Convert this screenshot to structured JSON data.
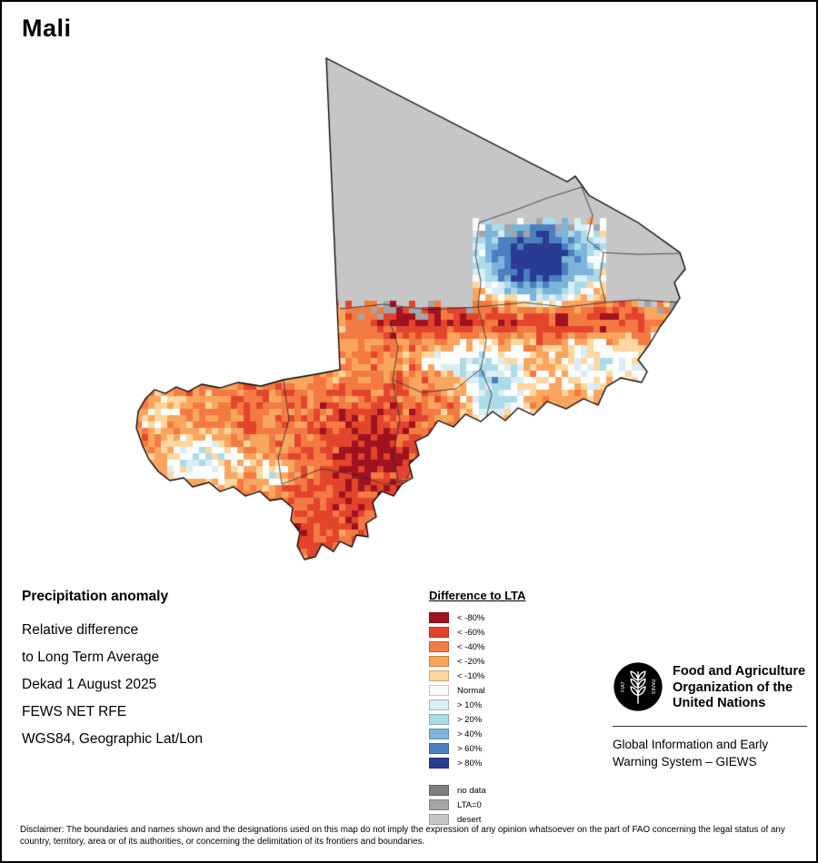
{
  "page": {
    "title": "Mali"
  },
  "info": {
    "heading": "Precipitation anomaly",
    "lines": [
      "Relative difference",
      "to Long Term Average",
      "Dekad 1 August 2025",
      "FEWS NET RFE",
      "WGS84, Geographic Lat/Lon"
    ]
  },
  "legend": {
    "title": "Difference to LTA",
    "anomaly_entries": [
      {
        "label": "< -80%",
        "color": "#a01220"
      },
      {
        "label": "< -60%",
        "color": "#e2452c"
      },
      {
        "label": "< -40%",
        "color": "#f47a44"
      },
      {
        "label": "< -20%",
        "color": "#faa55e"
      },
      {
        "label": "< -10%",
        "color": "#fdd79d"
      },
      {
        "label": "Normal",
        "color": "#fbfdfd"
      },
      {
        "label": "> 10%",
        "color": "#d9edf5"
      },
      {
        "label": "> 20%",
        "color": "#abdbe9"
      },
      {
        "label": "> 40%",
        "color": "#7cb4da"
      },
      {
        "label": "> 60%",
        "color": "#4b7fbf"
      },
      {
        "label": "> 80%",
        "color": "#2a3b94"
      }
    ],
    "special_entries": [
      {
        "label": "no data",
        "color": "#7d7d7d"
      },
      {
        "label": "LTA=0",
        "color": "#a5a5a5"
      },
      {
        "label": "desert",
        "color": "#c6c6c6"
      }
    ]
  },
  "fao": {
    "motto": [
      "FIAT",
      "PANIS"
    ],
    "org_lines": [
      "Food and Agriculture",
      "Organization of the",
      "United Nations"
    ],
    "giews_lines": [
      "Global Information and Early",
      "Warning System – GIEWS"
    ]
  },
  "disclaimer": "Disclaimer: The boundaries and names shown and the designations used on this map do not imply the expression of any opinion whatsoever on the part of FAO concerning the legal status of any country, territory, area or of its authorities, or concerning the delimitation of its frontiers and boundaries."
}
